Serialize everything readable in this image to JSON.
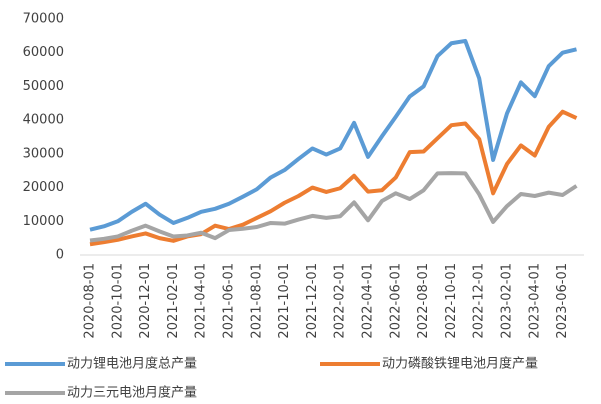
{
  "chart_data": {
    "type": "line",
    "categories": [
      "2020-08-01",
      null,
      "2020-10-01",
      null,
      "2020-12-01",
      null,
      "2021-02-01",
      null,
      "2021-04-01",
      null,
      "2021-06-01",
      null,
      "2021-08-01",
      null,
      "2021-10-01",
      null,
      "2021-12-01",
      null,
      "2022-02-01",
      null,
      "2022-04-01",
      null,
      "2022-06-01",
      null,
      "2022-08-01",
      null,
      "2022-10-01",
      null,
      "2022-12-01",
      null,
      "2023-02-01",
      null,
      "2023-04-01",
      null,
      "2023-06-01",
      null
    ],
    "series": [
      {
        "name": "动力锂电池月度总产量",
        "color": "#5b9bd5",
        "values": [
          7500,
          8500,
          10000,
          12800,
          15200,
          12000,
          9500,
          11000,
          12800,
          13700,
          15200,
          17300,
          19500,
          23000,
          25200,
          28500,
          31600,
          29800,
          31600,
          39200,
          29100,
          35200,
          41000,
          47000,
          50000,
          59000,
          62800,
          63500,
          52400,
          28200,
          42000,
          51200,
          47100,
          56000,
          60000,
          61000
        ]
      },
      {
        "name": "动力磷酸铁锂电池月度产量",
        "color": "#ed7d31",
        "values": [
          3200,
          3800,
          4500,
          5500,
          6400,
          5000,
          4200,
          5500,
          6200,
          8700,
          7700,
          9000,
          11000,
          13000,
          15500,
          17500,
          20000,
          18700,
          19800,
          23500,
          18800,
          19200,
          23000,
          30500,
          30700,
          34600,
          38500,
          39000,
          34400,
          18300,
          27000,
          32500,
          29500,
          38000,
          42500,
          40600
        ]
      },
      {
        "name": "动力三元电池月度产量",
        "color": "#a5a5a5",
        "values": [
          4300,
          4800,
          5500,
          7200,
          8700,
          7000,
          5500,
          5800,
          6600,
          5000,
          7400,
          7800,
          8300,
          9500,
          9300,
          10500,
          11600,
          11000,
          11500,
          15600,
          10300,
          16000,
          18300,
          16600,
          19200,
          24200,
          24300,
          24200,
          18000,
          9800,
          14500,
          18100,
          17500,
          18500,
          17800,
          20500
        ]
      }
    ],
    "ylim": [
      0,
      70000
    ],
    "yticks": [
      0,
      10000,
      20000,
      30000,
      40000,
      50000,
      60000,
      70000
    ]
  }
}
